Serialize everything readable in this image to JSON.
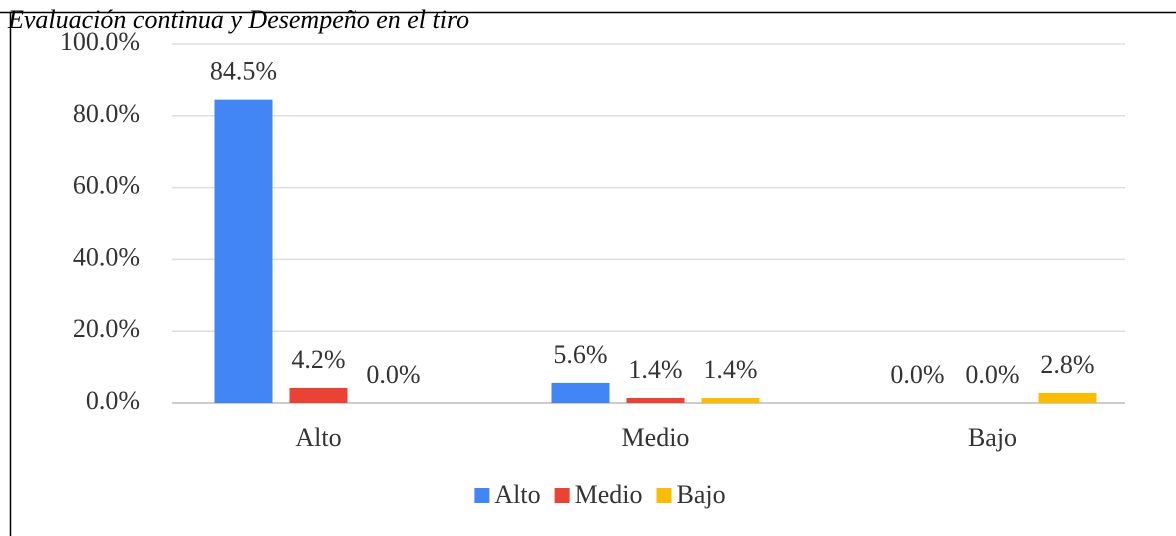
{
  "chart_data": {
    "type": "bar",
    "title": "Evaluación continua y Desempeño en el tiro",
    "categories": [
      "Alto",
      "Medio",
      "Bajo"
    ],
    "series": [
      {
        "name": "Alto",
        "color": "#4285f4",
        "values": [
          84.5,
          5.6,
          0.0
        ],
        "value_labels": [
          "84.5%",
          "5.6%",
          "0.0%"
        ]
      },
      {
        "name": "Medio",
        "color": "#ea4335",
        "values": [
          4.2,
          1.4,
          0.0
        ],
        "value_labels": [
          "4.2%",
          "1.4%",
          "0.0%"
        ]
      },
      {
        "name": "Bajo",
        "color": "#fbbc04",
        "values": [
          0.0,
          1.4,
          2.8
        ],
        "value_labels": [
          "0.0%",
          "1.4%",
          "2.8%"
        ]
      }
    ],
    "ylim": [
      0,
      100
    ],
    "yticks": [
      {
        "value": 0,
        "label": "0.0%"
      },
      {
        "value": 20,
        "label": "20.0%"
      },
      {
        "value": 40,
        "label": "40.0%"
      },
      {
        "value": 60,
        "label": "60.0%"
      },
      {
        "value": 80,
        "label": "80.0%"
      },
      {
        "value": 100,
        "label": "100.0%"
      }
    ],
    "grid": true,
    "legend": "bottom"
  }
}
